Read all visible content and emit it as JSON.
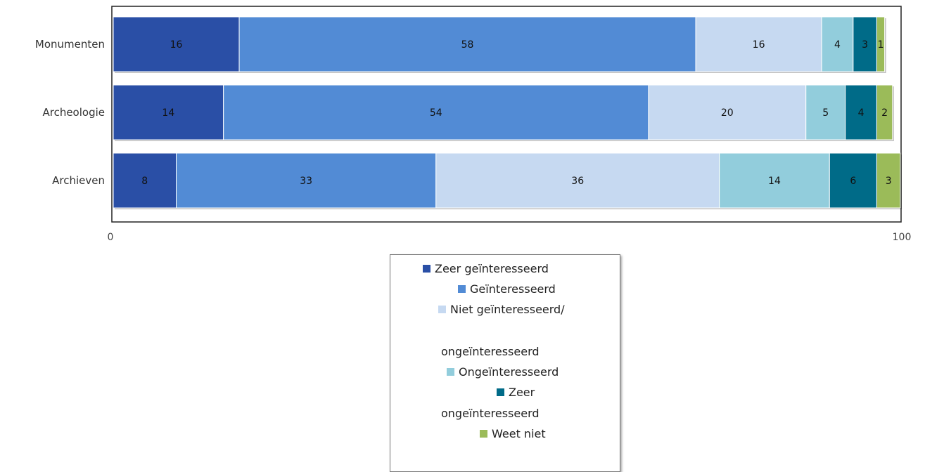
{
  "chart_data": {
    "type": "bar",
    "orientation": "horizontal",
    "stacked": true,
    "title": "",
    "xlabel": "",
    "ylabel": "",
    "xlim": [
      0,
      100
    ],
    "x_ticks": [
      "0",
      "100"
    ],
    "grid": false,
    "legend_position": "bottom",
    "categories": [
      "Monumenten",
      "Archeologie",
      "Archieven"
    ],
    "series": [
      {
        "name": "Zeer geïnteresseerd",
        "color": "#2a4fa6",
        "values": [
          16,
          14,
          8
        ]
      },
      {
        "name": "Geïnteresseerd",
        "color": "#528bd5",
        "values": [
          58,
          54,
          33
        ]
      },
      {
        "name": "Niet geïnteresseerd/ ongeïnteresseerd",
        "color": "#c6d9f1",
        "values": [
          16,
          20,
          36
        ]
      },
      {
        "name": "Ongeïnteresseerd",
        "color": "#92cddc",
        "values": [
          4,
          5,
          14
        ]
      },
      {
        "name": "Zeer ongeïnteresseerd",
        "color": "#006b88",
        "values": [
          3,
          4,
          6
        ]
      },
      {
        "name": "Weet niet",
        "color": "#9bbb59",
        "values": [
          1,
          2,
          3
        ]
      }
    ]
  },
  "legend": {
    "lines": [
      "Zeer geïnteresseerd",
      "Geïnteresseerd",
      "Niet geïnteresseerd/",
      "ongeïnteresseerd",
      "Ongeïnteresseerd",
      "Zeer",
      "ongeïnteresseerd",
      "Weet niet"
    ]
  }
}
